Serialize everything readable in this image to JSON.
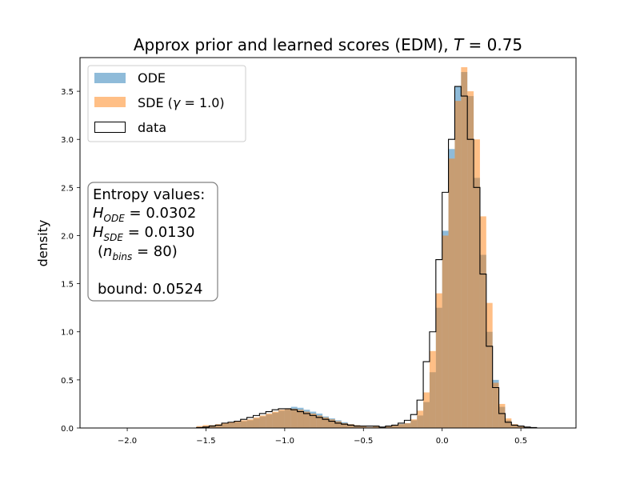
{
  "chart_data": {
    "type": "bar",
    "title": "Approx prior and learned scores (EDM), T = 0.75",
    "title_prefix": "Approx prior and learned scores (EDM), ",
    "title_var": "T",
    "title_suffix": " = 0.75",
    "xlabel": "",
    "ylabel": "density",
    "xlim": [
      -2.3,
      0.85
    ],
    "ylim": [
      0,
      3.85
    ],
    "xticks": [
      -2.0,
      -1.5,
      -1.0,
      -0.5,
      0.0,
      0.5
    ],
    "xtick_labels": [
      "−2.0",
      "−1.5",
      "−1.0",
      "−0.5",
      "0.0",
      "0.5"
    ],
    "yticks": [
      0.0,
      0.5,
      1.0,
      1.5,
      2.0,
      2.5,
      3.0,
      3.5
    ],
    "ytick_labels": [
      "0.0",
      "0.5",
      "1.0",
      "1.5",
      "2.0",
      "2.5",
      "3.0",
      "3.5"
    ],
    "grid": false,
    "legend_position": "top-left",
    "legend": [
      {
        "label": "ODE",
        "color": "#1f77b4",
        "alpha": 0.5,
        "style": "filled"
      },
      {
        "label": "SDE (γ = 1.0)",
        "label_prefix": "SDE (",
        "label_var": "γ",
        "label_suffix": " = 1.0)",
        "color": "#ff7f0e",
        "alpha": 0.5,
        "style": "filled"
      },
      {
        "label": "data",
        "color": "#000000",
        "style": "step"
      }
    ],
    "annotation": {
      "lines": [
        "Entropy values:",
        "H_ODE = 0.0302",
        "H_SDE = 0.0130",
        "(n_bins = 80)",
        "",
        "bound: 0.0524"
      ],
      "header": "Entropy values:",
      "h_ode": "0.0302",
      "h_sde": "0.0130",
      "n_bins": "80",
      "bound": "bound: 0.0524"
    },
    "bin_width": 0.04,
    "series": [
      {
        "name": "ODE",
        "color": "#1f77b4",
        "bin_start": -1.56,
        "values": [
          0.01,
          0.02,
          0.03,
          0.03,
          0.04,
          0.05,
          0.06,
          0.07,
          0.08,
          0.1,
          0.12,
          0.14,
          0.16,
          0.18,
          0.2,
          0.22,
          0.21,
          0.19,
          0.17,
          0.15,
          0.12,
          0.1,
          0.08,
          0.06,
          0.04,
          0.03,
          0.02,
          0.01,
          0.02,
          0.01,
          0.02,
          0.03,
          0.04,
          0.05,
          0.08,
          0.13,
          0.27,
          0.58,
          1.25,
          2.05,
          2.9,
          3.55,
          3.7,
          3.45,
          2.6,
          1.8,
          1.0,
          0.5,
          0.22,
          0.08,
          0.03,
          0.02,
          0.01,
          0.005
        ]
      },
      {
        "name": "SDE (γ = 1.0)",
        "color": "#ff7f0e",
        "bin_start": -1.56,
        "values": [
          0.02,
          0.03,
          0.03,
          0.04,
          0.05,
          0.06,
          0.07,
          0.08,
          0.09,
          0.11,
          0.13,
          0.15,
          0.17,
          0.19,
          0.2,
          0.2,
          0.19,
          0.17,
          0.15,
          0.13,
          0.11,
          0.09,
          0.07,
          0.05,
          0.04,
          0.03,
          0.02,
          0.01,
          0.02,
          0.01,
          0.02,
          0.03,
          0.04,
          0.05,
          0.09,
          0.18,
          0.37,
          0.8,
          1.4,
          2.0,
          2.8,
          3.4,
          3.75,
          3.5,
          3.0,
          2.2,
          1.3,
          0.47,
          0.25,
          0.1,
          0.04,
          0.02,
          0.01,
          0.005
        ]
      }
    ],
    "data_step": {
      "name": "data",
      "color": "#000000",
      "bin_start": -1.56,
      "values": [
        0.005,
        0.01,
        0.02,
        0.03,
        0.05,
        0.06,
        0.07,
        0.09,
        0.11,
        0.13,
        0.15,
        0.17,
        0.19,
        0.2,
        0.2,
        0.19,
        0.17,
        0.15,
        0.13,
        0.11,
        0.09,
        0.07,
        0.05,
        0.04,
        0.03,
        0.02,
        0.02,
        0.02,
        0.02,
        0.01,
        0.02,
        0.03,
        0.05,
        0.08,
        0.14,
        0.29,
        0.69,
        1.0,
        1.75,
        2.45,
        3.0,
        3.55,
        3.45,
        3.0,
        2.5,
        1.6,
        0.85,
        0.42,
        0.15,
        0.06,
        0.03,
        0.02,
        0.01,
        0.005
      ]
    }
  }
}
